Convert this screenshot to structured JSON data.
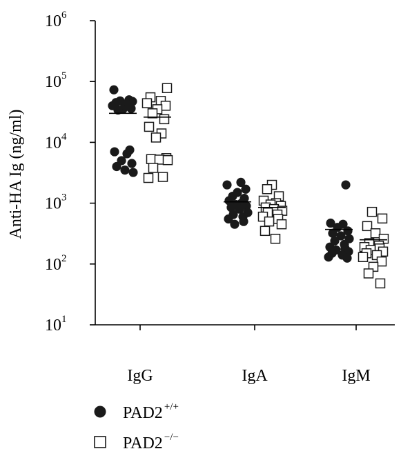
{
  "chart_data": {
    "type": "scatter",
    "title": "",
    "xlabel": "",
    "ylabel": "Anti-HA Ig (ng/ml)",
    "yscale": "log",
    "ylim": [
      10,
      1000000
    ],
    "yticks": [
      {
        "base": "10",
        "exp": "1"
      },
      {
        "base": "10",
        "exp": "2"
      },
      {
        "base": "10",
        "exp": "3"
      },
      {
        "base": "10",
        "exp": "4"
      },
      {
        "base": "10",
        "exp": "5"
      },
      {
        "base": "10",
        "exp": "6"
      }
    ],
    "categories": [
      "IgG",
      "IgA",
      "IgM"
    ],
    "grid": false,
    "legend_position": "bottom-left",
    "series": [
      {
        "name": "PAD2",
        "name_superscript": "+/+",
        "marker": "filled-circle",
        "color": "#1a1a1a",
        "values": [
          [
            73000,
            50000,
            48000,
            47000,
            45000,
            43000,
            40000,
            36000,
            35000,
            34000,
            7500,
            7000,
            6500,
            5000,
            4500,
            4000,
            3500,
            3200
          ],
          [
            2200,
            2000,
            1700,
            1500,
            1300,
            1200,
            1100,
            1000,
            950,
            900,
            850,
            800,
            700,
            650,
            600,
            550,
            500,
            450
          ],
          [
            2000,
            470,
            450,
            400,
            350,
            320,
            290,
            260,
            240,
            210,
            190,
            180,
            170,
            160,
            150,
            140,
            130,
            125
          ]
        ],
        "means": [
          30000,
          1050,
          370
        ]
      },
      {
        "name": "PAD2",
        "name_superscript": "−/−",
        "marker": "open-square",
        "color": "#1a1a1a",
        "values": [
          [
            78000,
            55000,
            48000,
            44000,
            40000,
            35000,
            30000,
            24000,
            18000,
            14000,
            12000,
            5500,
            5300,
            5200,
            5100,
            3800,
            2700,
            2600
          ],
          [
            2000,
            1700,
            1300,
            1100,
            1000,
            950,
            900,
            850,
            800,
            750,
            700,
            650,
            600,
            550,
            500,
            450,
            350,
            260
          ],
          [
            720,
            560,
            420,
            320,
            260,
            220,
            200,
            190,
            180,
            170,
            160,
            150,
            140,
            130,
            110,
            90,
            70,
            48
          ]
        ],
        "means": [
          26000,
          850,
          250
        ]
      }
    ]
  }
}
